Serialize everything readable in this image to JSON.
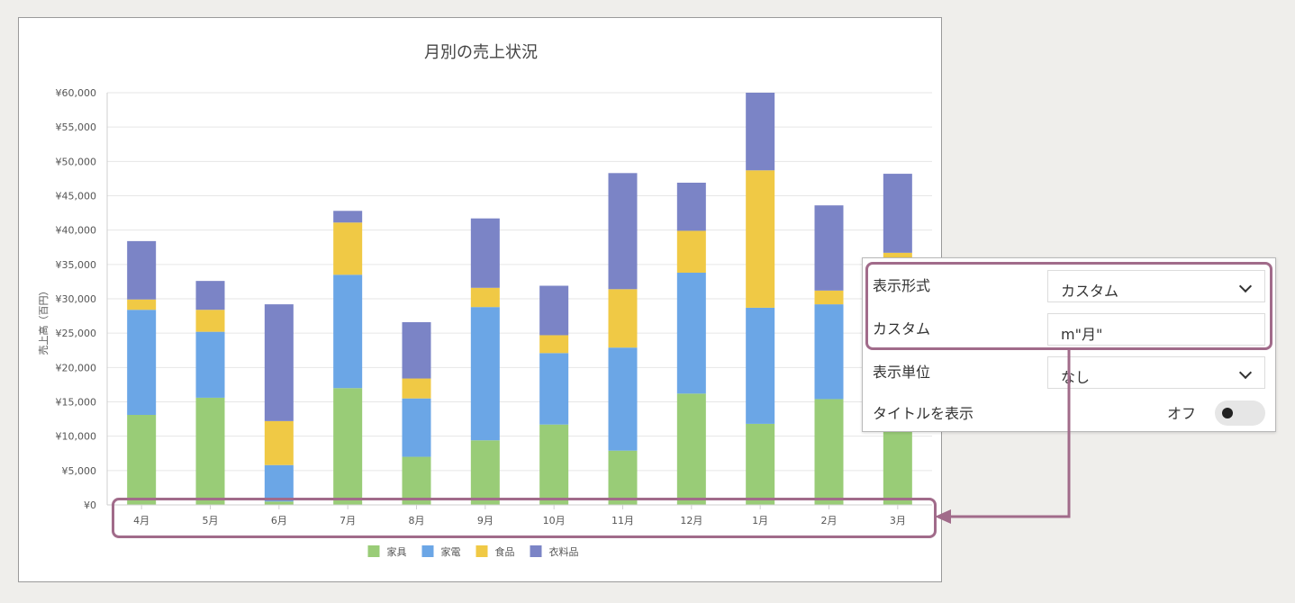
{
  "colors": {
    "furniture": "#99cc77",
    "appliance": "#6ba6e6",
    "food": "#f0c945",
    "clothing": "#7b84c6",
    "highlight": "#a16b8a"
  },
  "chart_data": {
    "type": "bar",
    "stacked": true,
    "title": "月別の売上状況",
    "ylabel": "売上高（百円）",
    "xlabel": "",
    "ylim": [
      0,
      60000
    ],
    "y_ticks": [
      "¥0",
      "¥5,000",
      "¥10,000",
      "¥15,000",
      "¥20,000",
      "¥25,000",
      "¥30,000",
      "¥35,000",
      "¥40,000",
      "¥45,000",
      "¥50,000",
      "¥55,000",
      "¥60,000"
    ],
    "categories": [
      "4月",
      "5月",
      "6月",
      "7月",
      "8月",
      "9月",
      "10月",
      "11月",
      "12月",
      "1月",
      "2月",
      "3月"
    ],
    "series": [
      {
        "name": "家具",
        "values": [
          13100,
          15600,
          500,
          17000,
          7000,
          9400,
          11700,
          7900,
          16200,
          11800,
          15400,
          11000
        ]
      },
      {
        "name": "家電",
        "values": [
          15300,
          9600,
          5300,
          16500,
          8500,
          19400,
          10400,
          15000,
          17600,
          16900,
          13800,
          20000
        ]
      },
      {
        "name": "食品",
        "values": [
          1500,
          3200,
          6400,
          7600,
          2900,
          2800,
          2600,
          8500,
          6100,
          20000,
          2000,
          5700
        ]
      },
      {
        "name": "衣料品",
        "values": [
          8500,
          4200,
          17000,
          1700,
          8200,
          10100,
          7200,
          16900,
          7000,
          11300,
          12400,
          11500
        ]
      }
    ],
    "legend": {
      "position": "bottom",
      "items": [
        "家具",
        "家電",
        "食品",
        "衣料品"
      ]
    },
    "grid": true
  },
  "panel": {
    "rows": [
      {
        "label": "表示形式",
        "value": "カスタム",
        "type": "select"
      },
      {
        "label": "カスタム",
        "value": "m\"月\"",
        "type": "input"
      },
      {
        "label": "表示単位",
        "value": "なし",
        "type": "select"
      },
      {
        "label": "タイトルを表示",
        "value": "オフ",
        "type": "toggle"
      }
    ]
  }
}
